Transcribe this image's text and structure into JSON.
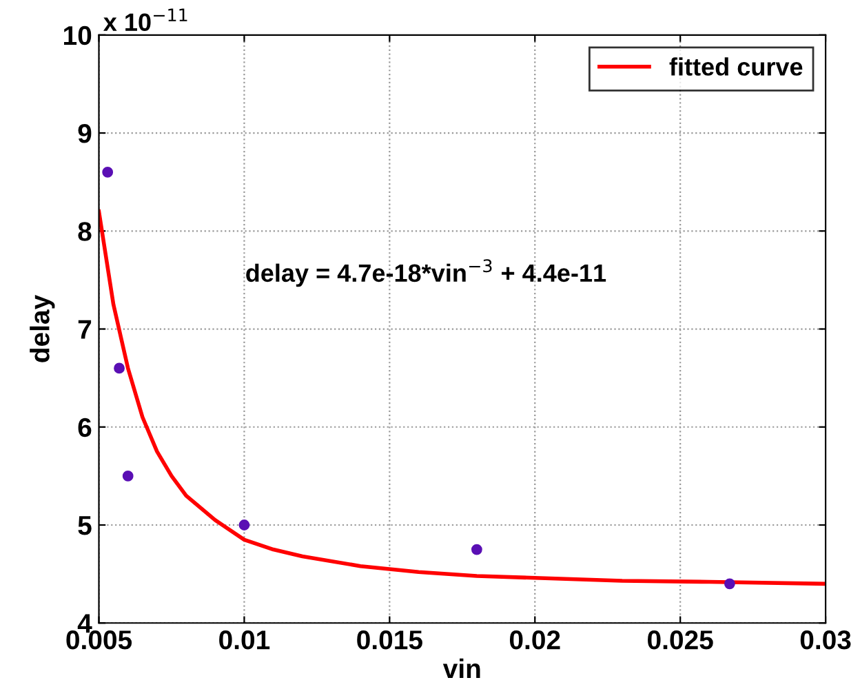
{
  "chart_data": {
    "type": "scatter",
    "xlabel": "vin",
    "ylabel": "delay",
    "annotations": [
      "delay = 4.7e-18*vin$^{−3}$ + 4.4e-11",
      "x 10$^{−11}$"
    ],
    "series": [
      {
        "color": "#5a0fb4",
        "marker": "circle",
        "x": [
          0.0053,
          0.0057,
          0.006,
          0.01,
          0.018,
          0.0267
        ],
        "values": [
          8.6,
          6.6,
          5.5,
          5.0,
          4.75,
          4.4
        ]
      },
      {
        "type": "line",
        "name": "fitted curve",
        "color": "#ff0000",
        "marker": "none",
        "line_style": "solid",
        "x": [
          0.005,
          0.0055,
          0.006,
          0.0065,
          0.007,
          0.0075,
          0.008,
          0.009,
          0.01,
          0.011,
          0.012,
          0.014,
          0.016,
          0.018,
          0.02,
          0.023,
          0.026,
          0.03
        ],
        "values": [
          8.2,
          7.25,
          6.6,
          6.1,
          5.75,
          5.5,
          5.3,
          5.05,
          4.85,
          4.75,
          4.68,
          4.58,
          4.52,
          4.48,
          4.46,
          4.43,
          4.42,
          4.4
        ]
      }
    ],
    "xlim": [
      0.005,
      0.03
    ],
    "xticks": [
      0.005,
      0.01,
      0.015,
      0.02,
      0.025,
      0.03
    ],
    "ylim": [
      4,
      10
    ],
    "yticks": [
      4,
      5,
      6,
      7,
      8,
      9,
      10
    ],
    "grid": true,
    "legend": "top right"
  }
}
